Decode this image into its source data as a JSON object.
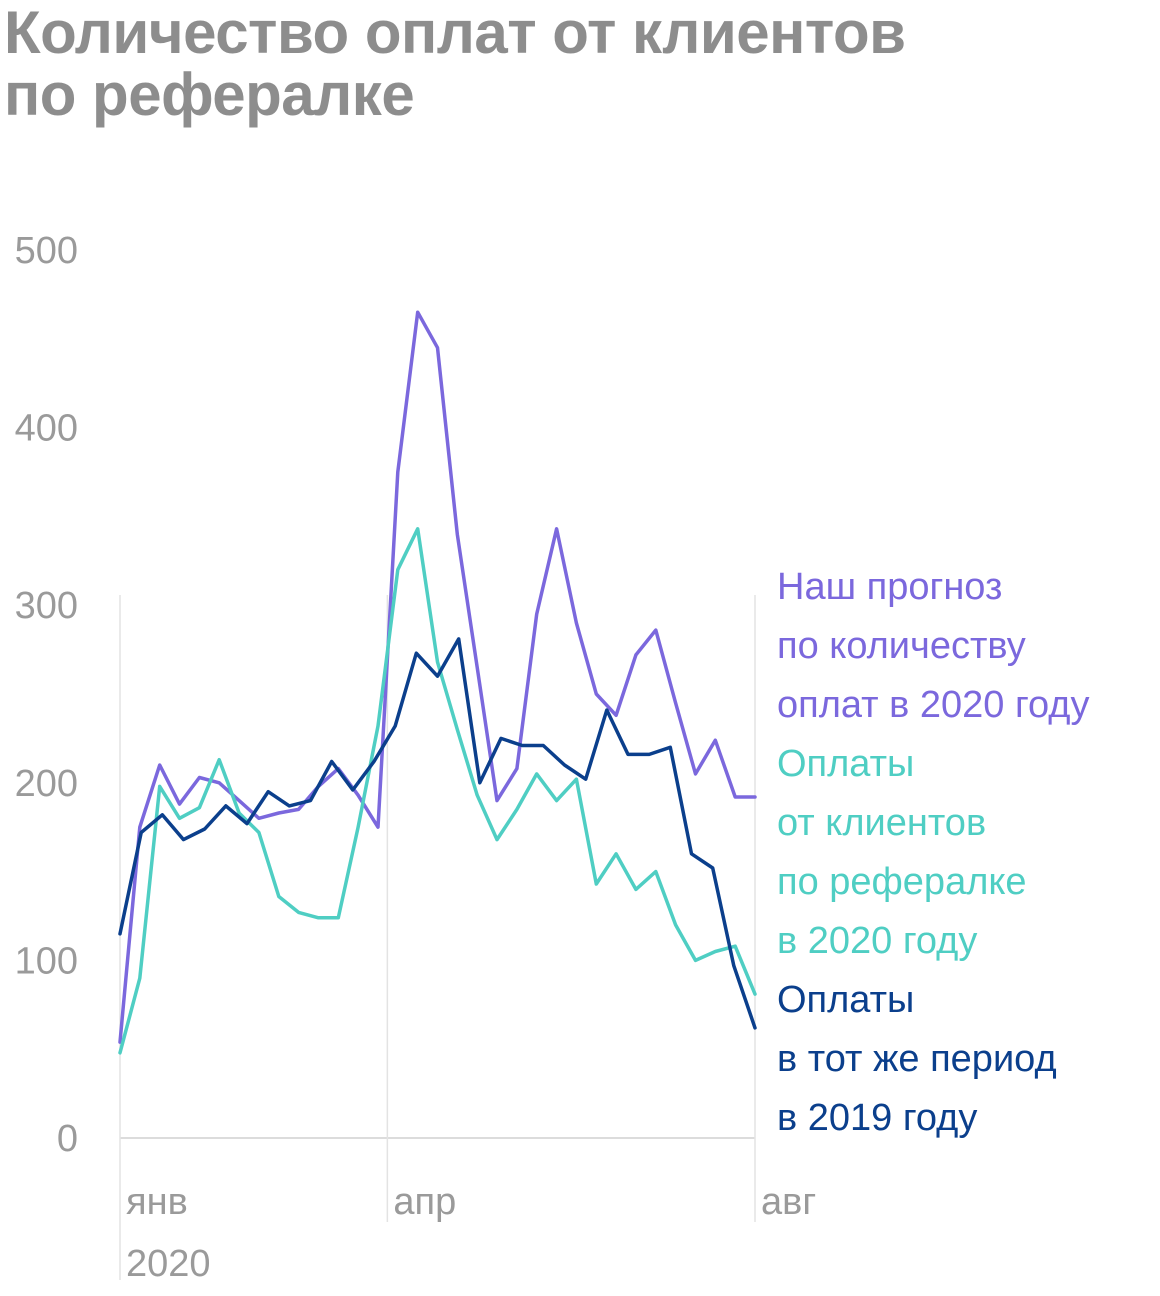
{
  "title_lines": [
    "Количество оплат от клиентов",
    "по рефералке"
  ],
  "chart_data": {
    "type": "line",
    "title": "Количество оплат от клиентов по рефералке",
    "ylim": [
      0,
      500
    ],
    "yticks": [
      0,
      100,
      200,
      300,
      400,
      500
    ],
    "x_index_range": [
      0,
      38
    ],
    "xticks": [
      {
        "index": 0,
        "label": "янв",
        "sublabel": "2020"
      },
      {
        "index": 16,
        "label": "апр",
        "sublabel": ""
      },
      {
        "index": 38,
        "label": "авг",
        "sublabel": ""
      }
    ],
    "grid": "vertical lines at month ticks",
    "legend_position": "right",
    "series": [
      {
        "name": "Наш прогноз по количеству оплат в 2020 году",
        "name_lines": [
          "Наш прогноз",
          "по количеству",
          "оплат в 2020 году"
        ],
        "color": "#7b68dd",
        "values": [
          54,
          175,
          210,
          188,
          203,
          200,
          190,
          180,
          183,
          185,
          198,
          208,
          193,
          175,
          375,
          465,
          445,
          340,
          265,
          190,
          208,
          295,
          343,
          290,
          250,
          238,
          272,
          286,
          245,
          205,
          224,
          192,
          192
        ]
      },
      {
        "name": "Оплаты от клиентов по рефералке в 2020 году",
        "name_lines": [
          "Оплаты",
          "от клиентов",
          "по рефералке",
          "в 2020 году"
        ],
        "color": "#4fcec3",
        "values": [
          48,
          90,
          198,
          180,
          186,
          213,
          183,
          172,
          136,
          127,
          124,
          124,
          175,
          232,
          320,
          343,
          268,
          230,
          193,
          168,
          185,
          205,
          190,
          202,
          143,
          160,
          140,
          150,
          120,
          100,
          105,
          108,
          81
        ]
      },
      {
        "name": "Оплаты в тот же период в 2019 году",
        "name_lines": [
          "Оплаты",
          "в тот же период",
          "в 2019 году"
        ],
        "color": "#0b3f8c",
        "values": [
          115,
          172,
          182,
          168,
          174,
          187,
          177,
          195,
          187,
          190,
          212,
          196,
          212,
          232,
          273,
          260,
          281,
          200,
          225,
          221,
          221,
          210,
          202,
          241,
          216,
          216,
          220,
          160,
          152,
          97,
          62
        ]
      }
    ]
  }
}
